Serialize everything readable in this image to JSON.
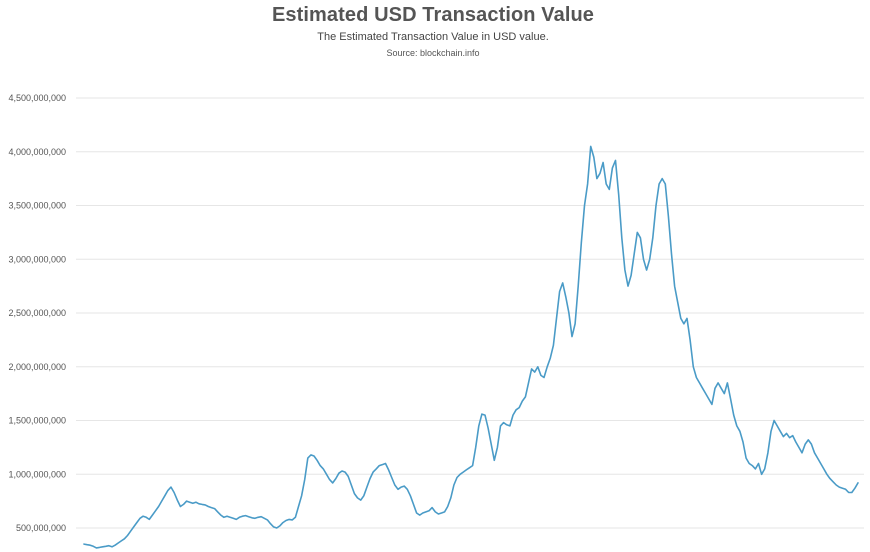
{
  "header": {
    "title": "Estimated USD Transaction Value",
    "subtitle": "The Estimated Transaction Value in USD value.",
    "source": "Source: blockchain.info"
  },
  "chart_data": {
    "type": "line",
    "title": "Estimated USD Transaction Value",
    "subtitle": "The Estimated Transaction Value in USD value.",
    "xlabel": "",
    "ylabel": "",
    "ylim": [
      0,
      4500000000
    ],
    "yticks": [
      500000000,
      1000000000,
      1500000000,
      2000000000,
      2500000000,
      3000000000,
      3500000000,
      4000000000,
      4500000000
    ],
    "ytick_labels": [
      "500,000,000",
      "1,000,000,000",
      "1,500,000,000",
      "2,000,000,000",
      "2,500,000,000",
      "3,000,000,000",
      "3,500,000,000",
      "4,000,000,000",
      "4,500,000,000"
    ],
    "grid": true,
    "legend": "none",
    "line_color": "#4a9bc7",
    "grid_color": "#e6e6e6",
    "series": [
      {
        "values": [
          350000000,
          345000000,
          340000000,
          330000000,
          315000000,
          320000000,
          325000000,
          330000000,
          335000000,
          325000000,
          340000000,
          360000000,
          380000000,
          400000000,
          430000000,
          470000000,
          510000000,
          550000000,
          590000000,
          610000000,
          600000000,
          580000000,
          620000000,
          660000000,
          700000000,
          750000000,
          800000000,
          850000000,
          880000000,
          830000000,
          760000000,
          700000000,
          720000000,
          750000000,
          740000000,
          730000000,
          740000000,
          725000000,
          720000000,
          715000000,
          700000000,
          690000000,
          680000000,
          650000000,
          620000000,
          600000000,
          610000000,
          600000000,
          590000000,
          580000000,
          600000000,
          610000000,
          615000000,
          605000000,
          595000000,
          590000000,
          600000000,
          605000000,
          590000000,
          575000000,
          540000000,
          510000000,
          500000000,
          520000000,
          550000000,
          570000000,
          580000000,
          575000000,
          600000000,
          700000000,
          800000000,
          950000000,
          1150000000,
          1180000000,
          1170000000,
          1130000000,
          1080000000,
          1050000000,
          1000000000,
          950000000,
          920000000,
          960000000,
          1010000000,
          1030000000,
          1020000000,
          980000000,
          900000000,
          820000000,
          780000000,
          760000000,
          800000000,
          880000000,
          960000000,
          1020000000,
          1050000000,
          1080000000,
          1090000000,
          1100000000,
          1040000000,
          970000000,
          900000000,
          860000000,
          880000000,
          890000000,
          860000000,
          800000000,
          720000000,
          640000000,
          620000000,
          640000000,
          650000000,
          660000000,
          690000000,
          650000000,
          630000000,
          640000000,
          650000000,
          700000000,
          780000000,
          900000000,
          970000000,
          1000000000,
          1020000000,
          1040000000,
          1060000000,
          1080000000,
          1250000000,
          1450000000,
          1560000000,
          1550000000,
          1430000000,
          1280000000,
          1130000000,
          1250000000,
          1450000000,
          1480000000,
          1460000000,
          1450000000,
          1550000000,
          1600000000,
          1620000000,
          1680000000,
          1720000000,
          1850000000,
          1980000000,
          1950000000,
          2000000000,
          1920000000,
          1900000000,
          2000000000,
          2080000000,
          2200000000,
          2450000000,
          2700000000,
          2780000000,
          2650000000,
          2500000000,
          2280000000,
          2400000000,
          2750000000,
          3150000000,
          3500000000,
          3700000000,
          4050000000,
          3950000000,
          3750000000,
          3800000000,
          3900000000,
          3700000000,
          3650000000,
          3850000000,
          3920000000,
          3600000000,
          3200000000,
          2900000000,
          2750000000,
          2850000000,
          3050000000,
          3250000000,
          3200000000,
          3000000000,
          2900000000,
          3000000000,
          3200000000,
          3500000000,
          3700000000,
          3750000000,
          3700000000,
          3400000000,
          3050000000,
          2750000000,
          2600000000,
          2450000000,
          2400000000,
          2450000000,
          2250000000,
          2000000000,
          1900000000,
          1850000000,
          1800000000,
          1750000000,
          1700000000,
          1650000000,
          1800000000,
          1850000000,
          1800000000,
          1750000000,
          1850000000,
          1700000000,
          1550000000,
          1450000000,
          1400000000,
          1300000000,
          1150000000,
          1100000000,
          1080000000,
          1050000000,
          1100000000,
          1000000000,
          1050000000,
          1200000000,
          1400000000,
          1500000000,
          1450000000,
          1400000000,
          1350000000,
          1380000000,
          1340000000,
          1360000000,
          1300000000,
          1250000000,
          1200000000,
          1280000000,
          1320000000,
          1280000000,
          1200000000,
          1150000000,
          1100000000,
          1050000000,
          1000000000,
          960000000,
          930000000,
          900000000,
          880000000,
          870000000,
          860000000,
          830000000,
          830000000,
          870000000,
          920000000
        ]
      }
    ]
  }
}
